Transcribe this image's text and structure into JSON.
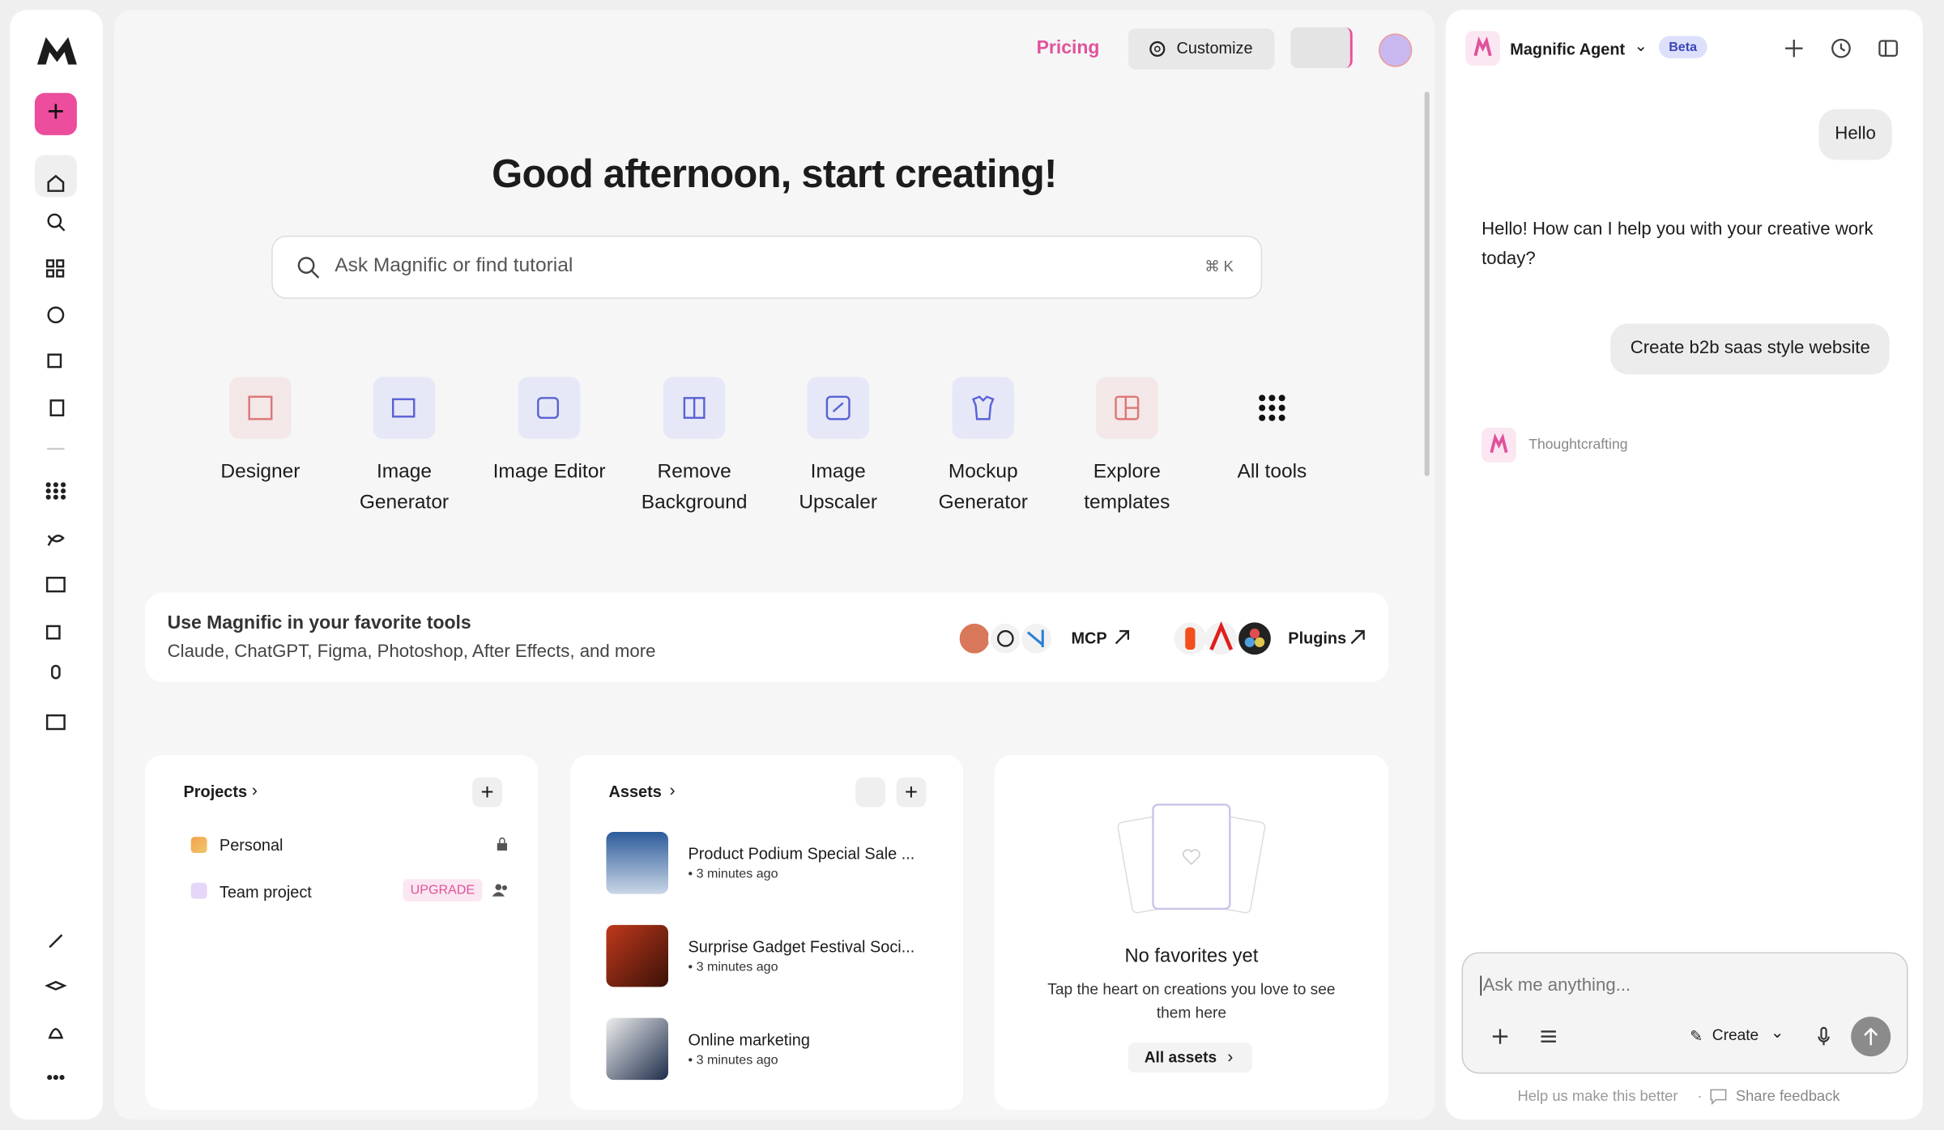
{
  "header": {
    "pricing": "Pricing",
    "customize": "Customize"
  },
  "greeting": "Good afternoon, start creating!",
  "search": {
    "placeholder": "Ask Magnific or find tutorial",
    "shortcut": "⌘ K"
  },
  "tools": [
    "Designer",
    "Image Generator",
    "Image Editor",
    "Remove Background",
    "Image Upscaler",
    "Mockup Generator",
    "Explore templates",
    "All tools"
  ],
  "integrations": {
    "title": "Use Magnific in your favorite tools",
    "subtitle": "Claude, ChatGPT, Figma, Photoshop, After Effects, and more",
    "mcp": "MCP",
    "plugins": "Plugins"
  },
  "projects": {
    "title": "Projects",
    "items": [
      {
        "name": "Personal"
      },
      {
        "name": "Team project",
        "badge": "UPGRADE"
      }
    ]
  },
  "assets": {
    "title": "Assets",
    "items": [
      {
        "name": "Product Podium Special Sale ...",
        "meta": "• 3 minutes ago"
      },
      {
        "name": "Surprise Gadget Festival Soci...",
        "meta": "• 3 minutes ago"
      },
      {
        "name": "Online marketing",
        "meta": "• 3 minutes ago"
      }
    ]
  },
  "favorites": {
    "title": "No favorites yet",
    "text": "Tap the heart on creations you love to see them here",
    "button": "All assets"
  },
  "agent": {
    "name": "Magnific Agent",
    "badge": "Beta",
    "messages": [
      "Hello",
      "Hello! How can I help you with your creative work today?",
      "Create b2b saas style website"
    ],
    "status": "Thoughtcrafting",
    "placeholder": "Ask me anything...",
    "create": "Create",
    "footer": "Help us make this better",
    "feedback": "Share feedback"
  }
}
